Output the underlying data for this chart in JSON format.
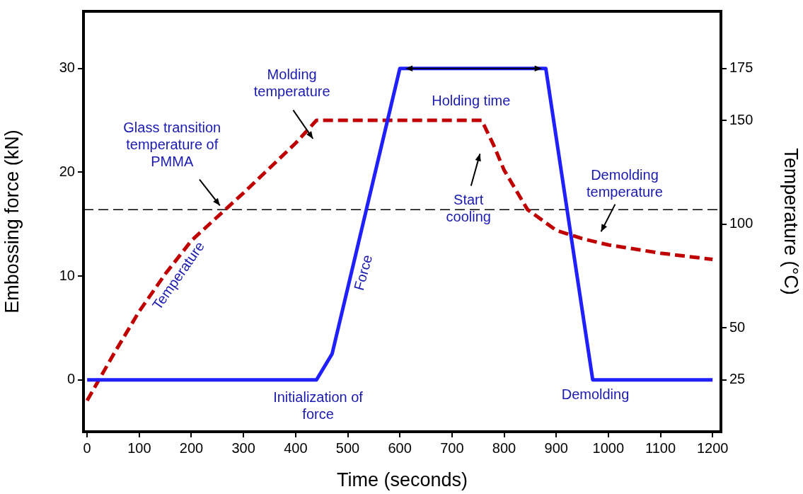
{
  "chart_data": {
    "type": "line",
    "xlabel": "Time (seconds)",
    "ylabel": "Embossing force (kN)",
    "y2label": "Temperature (°C)",
    "xlim": [
      -7,
      1216
    ],
    "xticks": [
      0,
      100,
      200,
      300,
      400,
      500,
      600,
      700,
      800,
      900,
      1000,
      1100,
      1200
    ],
    "ylim": [
      -5,
      35.5
    ],
    "yticks": [
      0,
      10,
      20,
      30
    ],
    "y2lim": [
      0,
      202.5
    ],
    "y2ticks": [
      25,
      50,
      100,
      150,
      175
    ],
    "grid": false,
    "legend": false,
    "marker": "none",
    "series": [
      {
        "color": "#1f1fff",
        "line_style": "solid",
        "x": [
          0,
          440,
          470,
          600,
          880,
          970,
          1200
        ],
        "values": [
          0,
          0,
          2.5,
          30,
          30,
          0,
          0
        ]
      },
      {
        "color": "#c00000",
        "line_style": "dashed",
        "axis": "y2",
        "x": [
          0,
          50,
          100,
          150,
          200,
          265,
          300,
          350,
          400,
          440,
          757,
          780,
          800,
          845,
          900,
          950,
          1000,
          1100,
          1200
        ],
        "values": [
          15,
          37,
          58,
          76,
          92,
          107,
          115,
          127,
          139,
          150,
          150,
          138,
          126,
          107,
          97,
          93,
          90,
          86,
          83
        ]
      }
    ],
    "ref_lines": [
      {
        "axis": "y2",
        "value": 107,
        "color": "#000000",
        "line_style": "dashed"
      }
    ],
    "annotations": [
      "Glass transition temperature of PMMA",
      "Molding temperature",
      "Start cooling",
      "Demolding temperature",
      "Holding time",
      "Temperature",
      "Force",
      "Initialization of force",
      "Demolding"
    ]
  }
}
